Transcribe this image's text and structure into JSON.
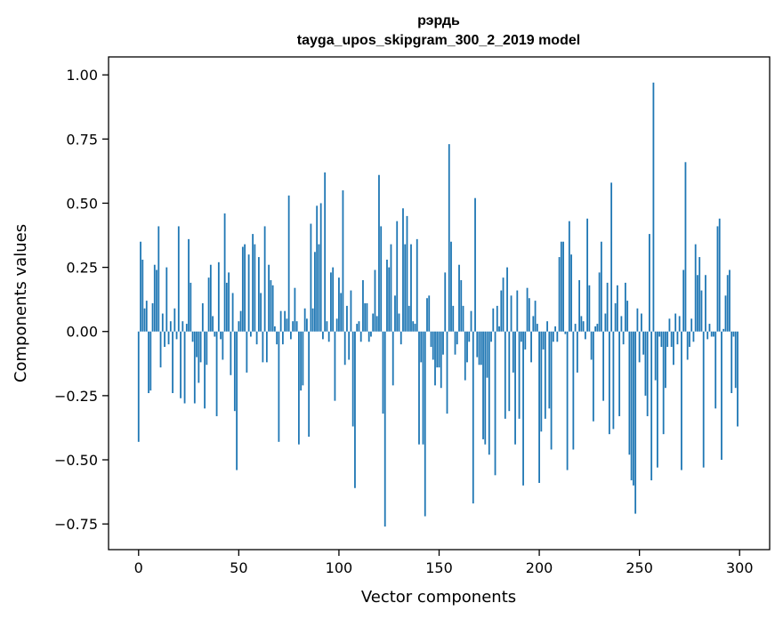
{
  "chart_data": {
    "type": "bar",
    "title_line1": "рэрдь",
    "title_line2": "tayga_upos_skipgram_300_2_2019 model",
    "xlabel": "Vector components",
    "ylabel": "Components values",
    "xlim": [
      -15,
      315
    ],
    "ylim": [
      -0.85,
      1.07
    ],
    "xticks": [
      0,
      50,
      100,
      150,
      200,
      250,
      300
    ],
    "yticks": [
      -0.75,
      -0.5,
      -0.25,
      0.0,
      0.25,
      0.5,
      0.75,
      1.0
    ],
    "xtick_labels": [
      "0",
      "50",
      "100",
      "150",
      "200",
      "250",
      "300"
    ],
    "ytick_labels": [
      "−0.75",
      "−0.50",
      "−0.25",
      "0.00",
      "0.25",
      "0.50",
      "0.75",
      "1.00"
    ],
    "bar_color": "#1f77b4",
    "values": [
      -0.43,
      0.35,
      0.28,
      0.09,
      0.12,
      -0.24,
      -0.23,
      0.11,
      0.26,
      0.24,
      0.41,
      -0.14,
      0.07,
      -0.06,
      0.25,
      -0.05,
      0.04,
      -0.24,
      0.09,
      -0.03,
      0.41,
      -0.26,
      0.04,
      -0.28,
      0.03,
      0.36,
      0.19,
      -0.04,
      -0.28,
      -0.1,
      -0.2,
      -0.12,
      0.11,
      -0.3,
      -0.13,
      0.21,
      0.26,
      0.06,
      -0.02,
      -0.33,
      0.27,
      -0.03,
      -0.11,
      0.46,
      0.19,
      0.23,
      -0.17,
      0.15,
      -0.31,
      -0.54,
      0.04,
      0.08,
      0.33,
      0.34,
      -0.16,
      0.3,
      -0.02,
      0.38,
      0.34,
      -0.05,
      0.29,
      0.15,
      -0.12,
      0.41,
      -0.12,
      0.26,
      0.2,
      0.18,
      0.02,
      -0.05,
      -0.43,
      0.08,
      -0.05,
      0.08,
      0.05,
      0.53,
      -0.03,
      0.04,
      0.17,
      0.04,
      -0.44,
      -0.23,
      -0.21,
      0.09,
      0.05,
      -0.41,
      0.42,
      0.09,
      0.31,
      0.49,
      0.34,
      0.5,
      -0.03,
      0.62,
      0.04,
      -0.04,
      0.23,
      0.25,
      -0.27,
      0.05,
      0.21,
      0.15,
      0.55,
      -0.13,
      0.1,
      -0.11,
      0.16,
      -0.37,
      -0.61,
      0.03,
      0.04,
      -0.04,
      0.2,
      0.11,
      0.11,
      -0.04,
      -0.02,
      0.07,
      0.24,
      0.06,
      0.61,
      0.41,
      -0.32,
      -0.76,
      0.28,
      0.25,
      0.34,
      -0.21,
      0.14,
      0.43,
      0.07,
      -0.05,
      0.48,
      0.34,
      0.45,
      0.1,
      0.34,
      0.04,
      0.03,
      0.36,
      -0.44,
      -0.12,
      -0.44,
      -0.72,
      0.13,
      0.14,
      -0.06,
      -0.11,
      -0.21,
      -0.14,
      -0.14,
      -0.22,
      -0.09,
      0.23,
      -0.32,
      0.73,
      0.35,
      0.1,
      -0.09,
      -0.05,
      0.26,
      0.2,
      0.1,
      -0.19,
      -0.12,
      -0.04,
      0.08,
      -0.67,
      0.52,
      -0.1,
      -0.13,
      -0.13,
      -0.42,
      -0.44,
      -0.18,
      -0.48,
      -0.04,
      0.09,
      -0.56,
      0.1,
      0.02,
      0.16,
      0.21,
      -0.34,
      0.25,
      -0.31,
      0.14,
      -0.16,
      -0.44,
      0.16,
      -0.34,
      -0.04,
      -0.6,
      -0.07,
      0.17,
      0.13,
      -0.12,
      0.06,
      0.12,
      0.03,
      -0.59,
      -0.39,
      -0.07,
      -0.34,
      0.04,
      -0.3,
      -0.46,
      -0.04,
      0.02,
      -0.04,
      0.29,
      0.35,
      0.35,
      -0.01,
      -0.54,
      0.43,
      0.3,
      -0.46,
      0.03,
      -0.16,
      0.2,
      0.06,
      0.04,
      -0.03,
      0.44,
      0.18,
      -0.11,
      -0.35,
      0.02,
      0.03,
      0.23,
      0.35,
      -0.27,
      0.07,
      0.19,
      -0.4,
      0.58,
      -0.38,
      0.11,
      0.18,
      -0.33,
      0.06,
      -0.05,
      0.19,
      0.12,
      -0.48,
      -0.58,
      -0.6,
      -0.71,
      0.09,
      -0.12,
      0.07,
      -0.09,
      -0.25,
      -0.33,
      0.38,
      -0.58,
      0.97,
      -0.19,
      -0.53,
      -0.02,
      -0.06,
      -0.4,
      -0.22,
      -0.06,
      0.05,
      -0.06,
      -0.13,
      0.07,
      -0.05,
      0.06,
      -0.54,
      0.24,
      0.66,
      -0.11,
      -0.06,
      0.05,
      -0.04,
      0.34,
      0.22,
      0.29,
      0.16,
      -0.53,
      0.22,
      -0.03,
      0.03,
      -0.02,
      -0.02,
      -0.3,
      0.41,
      0.44,
      -0.5,
      0.01,
      0.14,
      0.22,
      0.24,
      -0.24,
      -0.02,
      -0.22,
      -0.37
    ]
  }
}
